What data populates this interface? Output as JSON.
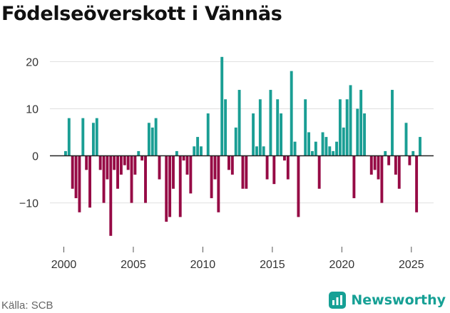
{
  "title": "Födelseöverskott i Vännäs",
  "source": "Källa: SCB",
  "brand": {
    "name": "Newsworthy",
    "icon": "bar-chart-logo-icon",
    "color": "#16a095"
  },
  "colors": {
    "positive": "#1a9e94",
    "negative": "#960a45",
    "grid": "#e3e3e3",
    "zero": "#222222"
  },
  "chart_data": {
    "type": "bar",
    "title": "Födelseöverskott i Vännäs",
    "xlabel": "",
    "ylabel": "",
    "ylim": [
      -19,
      24
    ],
    "xlim": [
      1999.0,
      2026.6
    ],
    "yticks": [
      20,
      10,
      0,
      -10
    ],
    "ytick_labels": [
      "20",
      "10",
      "0",
      "−10"
    ],
    "xticks": [
      2000,
      2005,
      2010,
      2015,
      2020,
      2025
    ],
    "xtick_labels": [
      "2000",
      "2005",
      "2010",
      "2015",
      "2020",
      "2025"
    ],
    "grid": true,
    "legend": "none",
    "bar_width_years": 0.2,
    "x": [
      2000.125,
      2000.375,
      2000.625,
      2000.875,
      2001.125,
      2001.375,
      2001.625,
      2001.875,
      2002.125,
      2002.375,
      2002.625,
      2002.875,
      2003.125,
      2003.375,
      2003.625,
      2003.875,
      2004.125,
      2004.375,
      2004.625,
      2004.875,
      2005.125,
      2005.375,
      2005.625,
      2005.875,
      2006.125,
      2006.375,
      2006.625,
      2006.875,
      2007.125,
      2007.375,
      2007.625,
      2007.875,
      2008.125,
      2008.375,
      2008.625,
      2008.875,
      2009.125,
      2009.375,
      2009.625,
      2009.875,
      2010.125,
      2010.375,
      2010.625,
      2010.875,
      2011.125,
      2011.375,
      2011.625,
      2011.875,
      2012.125,
      2012.375,
      2012.625,
      2012.875,
      2013.125,
      2013.375,
      2013.625,
      2013.875,
      2014.125,
      2014.375,
      2014.625,
      2014.875,
      2015.125,
      2015.375,
      2015.625,
      2015.875,
      2016.125,
      2016.375,
      2016.625,
      2016.875,
      2017.125,
      2017.375,
      2017.625,
      2017.875,
      2018.125,
      2018.375,
      2018.625,
      2018.875,
      2019.125,
      2019.375,
      2019.625,
      2019.875,
      2020.125,
      2020.375,
      2020.625,
      2020.875,
      2021.125,
      2021.375,
      2021.625,
      2021.875,
      2022.125,
      2022.375,
      2022.625,
      2022.875,
      2023.125,
      2023.375,
      2023.625,
      2023.875,
      2024.125,
      2024.375,
      2024.625,
      2024.875,
      2025.125,
      2025.375,
      2025.625
    ],
    "values": [
      1,
      8,
      -7,
      -9,
      -12,
      8,
      -3,
      -11,
      7,
      8,
      -3,
      -10,
      -5,
      -17,
      -3,
      -7,
      -4,
      -2,
      -3,
      -10,
      -4,
      1,
      -1,
      -10,
      7,
      6,
      8,
      -5,
      0,
      -14,
      -13,
      -7,
      1,
      -13,
      -1,
      -4,
      -8,
      2,
      4,
      2,
      0,
      9,
      -9,
      -5,
      -12,
      21,
      12,
      -3,
      -4,
      6,
      14,
      -7,
      -7,
      0,
      9,
      2,
      12,
      2,
      -5,
      14,
      -6,
      12,
      9,
      -1,
      -5,
      18,
      3,
      -13,
      0,
      12,
      5,
      1,
      3,
      -7,
      5,
      4,
      2,
      1,
      3,
      12,
      6,
      12,
      15,
      -9,
      10,
      14,
      9,
      0,
      -4,
      -3,
      -5,
      -10,
      1,
      -2,
      14,
      -4,
      -7,
      0,
      7,
      -2,
      1,
      -12,
      4
    ]
  }
}
